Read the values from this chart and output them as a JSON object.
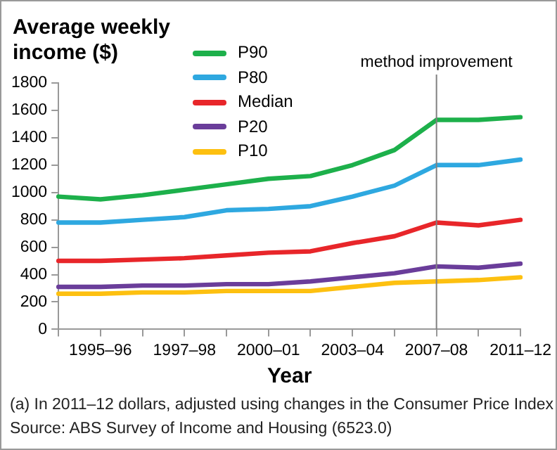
{
  "chart_data": {
    "type": "line",
    "ylabel": "Average weekly income ($)",
    "xlabel": "Year",
    "categories": [
      null,
      "1995–96",
      null,
      "1997–98",
      null,
      "2000–01",
      null,
      "2003–04",
      null,
      "2007–08",
      null,
      "2011–12"
    ],
    "series": [
      {
        "name": "P90",
        "color": "#1db04b",
        "values": [
          970,
          950,
          980,
          1020,
          1060,
          1100,
          1120,
          1200,
          1310,
          1530,
          1530,
          1550
        ]
      },
      {
        "name": "P80",
        "color": "#2ea8e0",
        "values": [
          780,
          780,
          800,
          820,
          870,
          880,
          900,
          970,
          1050,
          1200,
          1200,
          1240
        ]
      },
      {
        "name": "Median",
        "color": "#e8262a",
        "values": [
          500,
          500,
          510,
          520,
          540,
          560,
          570,
          630,
          680,
          780,
          760,
          800
        ]
      },
      {
        "name": "P20",
        "color": "#6a3d9a",
        "values": [
          310,
          310,
          320,
          320,
          330,
          330,
          350,
          380,
          410,
          460,
          450,
          480
        ]
      },
      {
        "name": "P10",
        "color": "#fdc010",
        "values": [
          260,
          260,
          270,
          270,
          280,
          280,
          280,
          310,
          340,
          350,
          360,
          380
        ]
      }
    ],
    "ylim": [
      0,
      1800
    ],
    "yticks": [
      0,
      200,
      400,
      600,
      800,
      1000,
      1200,
      1400,
      1600,
      1800
    ],
    "legend": "top left",
    "marker": "none",
    "ref_lines": [
      {
        "axis": "x",
        "value": "2007–08",
        "label": "method improvement",
        "color": "#808080"
      }
    ],
    "annotations": [
      "(a) In 2011–12 dollars, adjusted using changes in the Consumer Price Index",
      "Source: ABS Survey of Income and Housing (6523.0)"
    ]
  }
}
